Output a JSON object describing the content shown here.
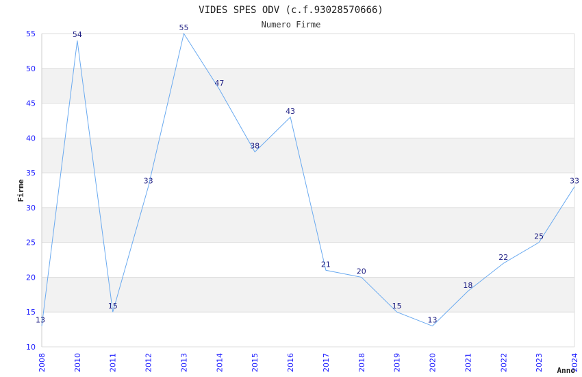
{
  "chart_data": {
    "type": "line",
    "title": "VIDES SPES ODV (c.f.93028570666)",
    "subtitle": "Numero Firme",
    "xlabel": "Anno",
    "ylabel": "Firme",
    "categories": [
      "2008",
      "2010",
      "2011",
      "2012",
      "2013",
      "2014",
      "2015",
      "2016",
      "2017",
      "2018",
      "2019",
      "2020",
      "2021",
      "2022",
      "2023",
      "2024"
    ],
    "series": [
      {
        "name": "Firme",
        "values": [
          13,
          54,
          15,
          33,
          55,
          47,
          38,
          43,
          21,
          20,
          15,
          13,
          18,
          22,
          25,
          33
        ]
      }
    ],
    "ylim": [
      10,
      55
    ],
    "yticks": [
      10,
      15,
      20,
      25,
      30,
      35,
      40,
      45,
      50,
      55
    ],
    "grid": true,
    "colors": {
      "line": "#6aaaf0",
      "band": "#f2f2f2",
      "grid": "#dddddd",
      "tick": "#1a1aff",
      "label": "#1a1a80"
    }
  }
}
